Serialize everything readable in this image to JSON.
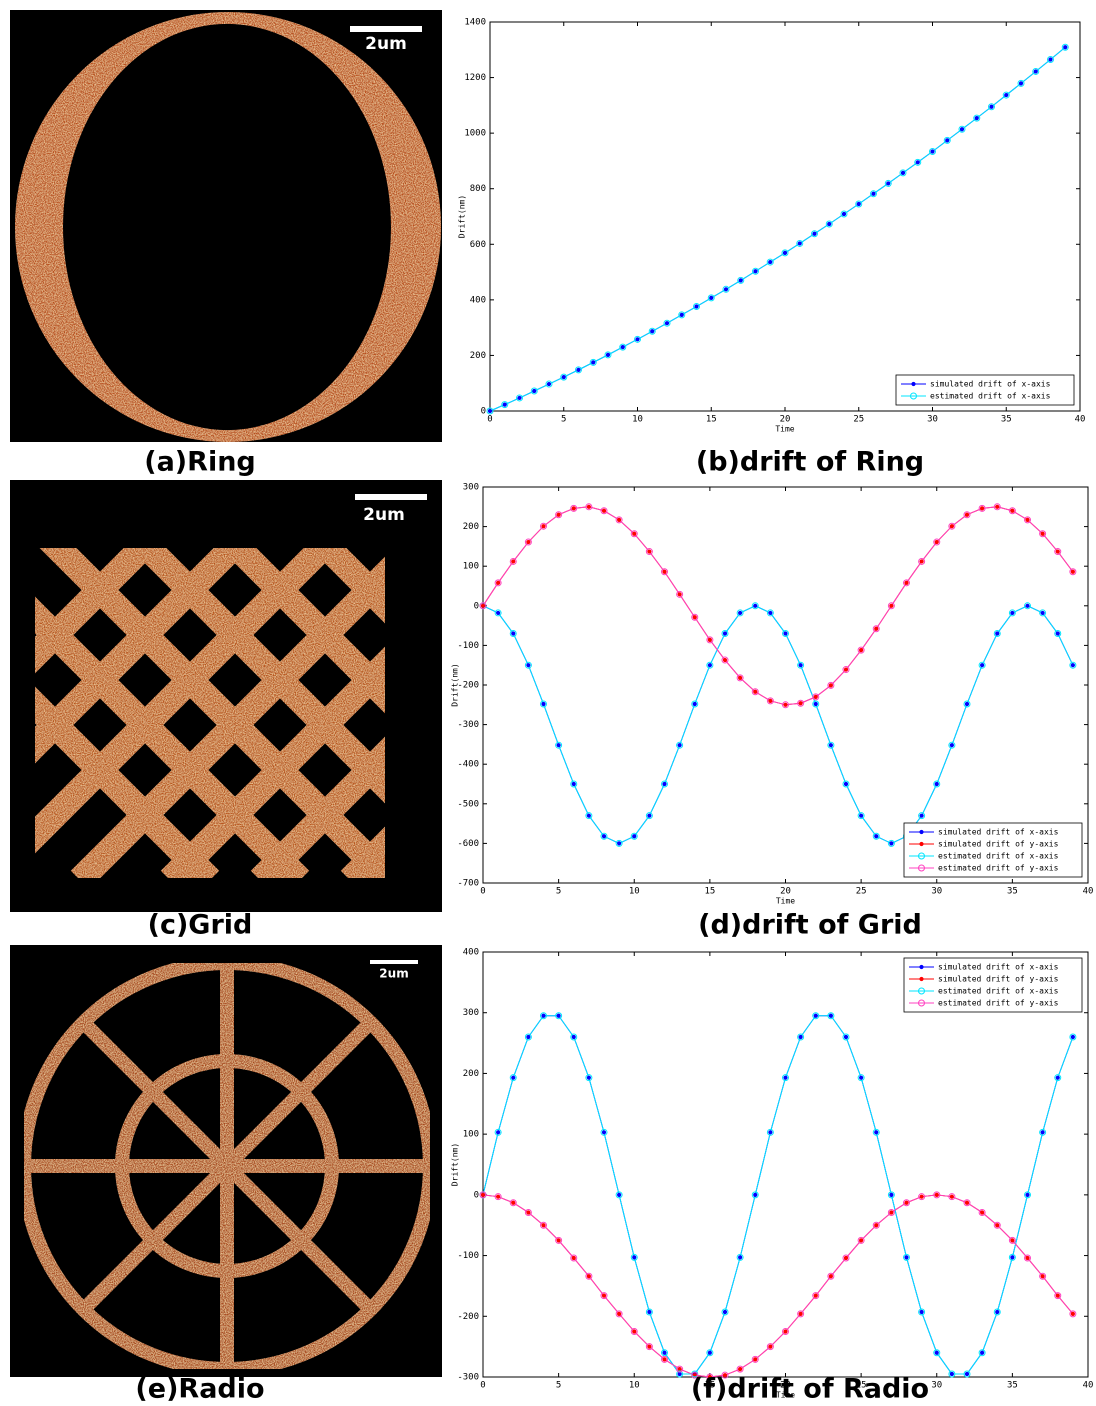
{
  "chart_data": [
    {
      "type": "line",
      "title": "(b)drift of Ring",
      "xlabel": "Time",
      "ylabel": "Drift(nm)",
      "x": [
        0,
        1,
        2,
        3,
        4,
        5,
        6,
        7,
        8,
        9,
        10,
        11,
        12,
        13,
        14,
        15,
        16,
        17,
        18,
        19,
        20,
        21,
        22,
        23,
        24,
        25,
        26,
        27,
        28,
        29,
        30,
        31,
        32,
        33,
        34,
        35,
        36,
        37,
        38,
        39
      ],
      "xlim": [
        0,
        40
      ],
      "xticks": [
        0,
        5,
        10,
        15,
        20,
        25,
        30,
        35,
        40
      ],
      "ylim": [
        0,
        1400
      ],
      "yticks": [
        0,
        200,
        400,
        600,
        800,
        1000,
        1200,
        1400
      ],
      "legend": "lower right",
      "series": [
        {
          "name": "simulated drift of x-axis",
          "color": "#0000ff",
          "marker": "dot",
          "values": [
            0,
            23,
            47,
            72,
            97,
            122,
            148,
            175,
            202,
            230,
            258,
            287,
            316,
            346,
            376,
            407,
            438,
            470,
            503,
            536,
            569,
            603,
            638,
            673,
            709,
            745,
            782,
            819,
            857,
            895,
            934,
            974,
            1014,
            1054,
            1095,
            1137,
            1179,
            1222,
            1265,
            1309
          ]
        },
        {
          "name": "estimated drift of x-axis",
          "color": "#00e5ff",
          "marker": "circle",
          "values": [
            0,
            23,
            47,
            72,
            97,
            122,
            148,
            175,
            202,
            230,
            258,
            287,
            316,
            346,
            376,
            407,
            438,
            470,
            503,
            536,
            569,
            603,
            638,
            673,
            709,
            745,
            782,
            819,
            857,
            895,
            934,
            974,
            1014,
            1054,
            1095,
            1137,
            1179,
            1222,
            1265,
            1309
          ]
        }
      ]
    },
    {
      "type": "line",
      "title": "(d)drift of Grid",
      "xlabel": "Time",
      "ylabel": "Drift(nm)",
      "x": [
        0,
        1,
        2,
        3,
        4,
        5,
        6,
        7,
        8,
        9,
        10,
        11,
        12,
        13,
        14,
        15,
        16,
        17,
        18,
        19,
        20,
        21,
        22,
        23,
        24,
        25,
        26,
        27,
        28,
        29,
        30,
        31,
        32,
        33,
        34,
        35,
        36,
        37,
        38,
        39
      ],
      "xlim": [
        0,
        40
      ],
      "xticks": [
        0,
        5,
        10,
        15,
        20,
        25,
        30,
        35,
        40
      ],
      "ylim": [
        -700,
        300
      ],
      "yticks": [
        -700,
        -600,
        -500,
        -400,
        -300,
        -200,
        -100,
        0,
        100,
        200,
        300
      ],
      "legend": "lower right",
      "series": [
        {
          "name": "simulated drift of x-axis",
          "color": "#0000ff",
          "marker": "dot",
          "values": [
            0,
            -18,
            -70,
            -150,
            -248,
            -352,
            -450,
            -530,
            -582,
            -600,
            -582,
            -530,
            -450,
            -352,
            -248,
            -150,
            -70,
            -18,
            0,
            -18,
            -70,
            -150,
            -248,
            -352,
            -450,
            -530,
            -582,
            -600,
            -582,
            -530,
            -450,
            -352,
            -248,
            -150,
            -70,
            -18,
            0,
            -18,
            -70,
            -150
          ]
        },
        {
          "name": "simulated drift of y-axis",
          "color": "#ff0000",
          "marker": "dot",
          "values": [
            0,
            58,
            112,
            161,
            201,
            230,
            246,
            250,
            240,
            217,
            182,
            137,
            86,
            29,
            -29,
            -86,
            -137,
            -182,
            -217,
            -240,
            -250,
            -246,
            -230,
            -201,
            -161,
            -112,
            -58,
            0,
            58,
            112,
            161,
            201,
            230,
            246,
            250,
            240,
            217,
            182,
            137,
            86
          ]
        },
        {
          "name": "estimated drift of x-axis",
          "color": "#00e5ff",
          "marker": "circle",
          "values": [
            0,
            -18,
            -70,
            -150,
            -248,
            -352,
            -450,
            -530,
            -582,
            -600,
            -582,
            -530,
            -450,
            -352,
            -248,
            -150,
            -70,
            -18,
            0,
            -18,
            -70,
            -150,
            -248,
            -352,
            -450,
            -530,
            -582,
            -600,
            -582,
            -530,
            -450,
            -352,
            -248,
            -150,
            -70,
            -18,
            0,
            -18,
            -70,
            -150
          ]
        },
        {
          "name": "estimated drift of y-axis",
          "color": "#ff40c0",
          "marker": "circle",
          "values": [
            0,
            58,
            112,
            161,
            201,
            230,
            246,
            250,
            240,
            217,
            182,
            137,
            86,
            29,
            -29,
            -86,
            -137,
            -182,
            -217,
            -240,
            -250,
            -246,
            -230,
            -201,
            -161,
            -112,
            -58,
            0,
            58,
            112,
            161,
            201,
            230,
            246,
            250,
            240,
            217,
            182,
            137,
            86
          ]
        }
      ]
    },
    {
      "type": "line",
      "title": "(f)drift of Radio",
      "xlabel": "Time",
      "ylabel": "Drift(nm)",
      "x": [
        0,
        1,
        2,
        3,
        4,
        5,
        6,
        7,
        8,
        9,
        10,
        11,
        12,
        13,
        14,
        15,
        16,
        17,
        18,
        19,
        20,
        21,
        22,
        23,
        24,
        25,
        26,
        27,
        28,
        29,
        30,
        31,
        32,
        33,
        34,
        35,
        36,
        37,
        38,
        39
      ],
      "xlim": [
        0,
        40
      ],
      "xticks": [
        0,
        5,
        10,
        15,
        20,
        25,
        30,
        35,
        40
      ],
      "ylim": [
        -300,
        400
      ],
      "yticks": [
        -300,
        -200,
        -100,
        0,
        100,
        200,
        300,
        400
      ],
      "legend": "upper right",
      "series": [
        {
          "name": "simulated drift of x-axis",
          "color": "#0000ff",
          "marker": "dot",
          "values": [
            0,
            103,
            193,
            260,
            295,
            295,
            260,
            193,
            103,
            0,
            -103,
            -193,
            -260,
            -295,
            -295,
            -260,
            -193,
            -103,
            0,
            103,
            193,
            260,
            295,
            295,
            260,
            193,
            103,
            0,
            -103,
            -193,
            -260,
            -295,
            -295,
            -260,
            -193,
            -103,
            0,
            103,
            193,
            260
          ]
        },
        {
          "name": "simulated drift of y-axis",
          "color": "#ff0000",
          "marker": "dot",
          "values": [
            0,
            -3,
            -13,
            -29,
            -50,
            -75,
            -104,
            -134,
            -166,
            -196,
            -225,
            -250,
            -271,
            -287,
            -297,
            -300,
            -297,
            -287,
            -271,
            -250,
            -225,
            -196,
            -166,
            -134,
            -104,
            -75,
            -50,
            -29,
            -13,
            -3,
            0,
            -3,
            -13,
            -29,
            -50,
            -75,
            -104,
            -134,
            -166,
            -196
          ]
        },
        {
          "name": "estimated drift of x-axis",
          "color": "#00e5ff",
          "marker": "circle",
          "values": [
            0,
            103,
            193,
            260,
            295,
            295,
            260,
            193,
            103,
            0,
            -103,
            -193,
            -260,
            -295,
            -295,
            -260,
            -193,
            -103,
            0,
            103,
            193,
            260,
            295,
            295,
            260,
            193,
            103,
            0,
            -103,
            -193,
            -260,
            -295,
            -295,
            -260,
            -193,
            -103,
            0,
            103,
            193,
            260
          ]
        },
        {
          "name": "estimated drift of y-axis",
          "color": "#ff40c0",
          "marker": "circle",
          "values": [
            0,
            -3,
            -13,
            -29,
            -50,
            -75,
            -104,
            -134,
            -166,
            -196,
            -225,
            -250,
            -271,
            -287,
            -297,
            -300,
            -297,
            -287,
            -271,
            -250,
            -225,
            -196,
            -166,
            -134,
            -104,
            -75,
            -50,
            -29,
            -13,
            -3,
            0,
            -3,
            -13,
            -29,
            -50,
            -75,
            -104,
            -134,
            -166,
            -196
          ]
        }
      ]
    }
  ],
  "images": [
    {
      "caption": "(a)Ring",
      "scale_bar": "2um"
    },
    {
      "caption": "(c)Grid",
      "scale_bar": "2um"
    },
    {
      "caption": "(e)Radio",
      "scale_bar": "2um"
    }
  ]
}
